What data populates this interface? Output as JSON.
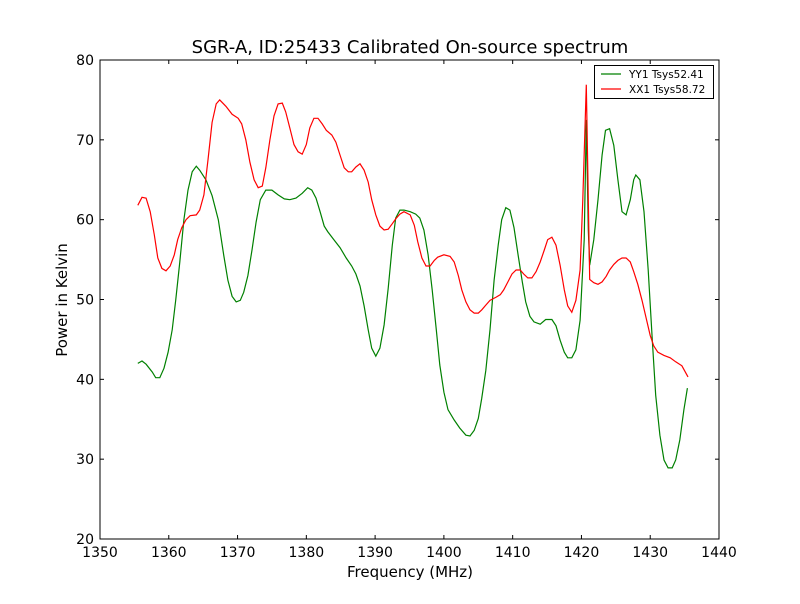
{
  "chart_data": {
    "type": "line",
    "title": "SGR-A, ID:25433 Calibrated On-source spectrum",
    "xlabel": "Frequency (MHz)",
    "ylabel": "Power in Kelvin",
    "xlim": [
      1350,
      1440
    ],
    "ylim": [
      20,
      80
    ],
    "xticks": [
      1350,
      1360,
      1370,
      1380,
      1390,
      1400,
      1410,
      1420,
      1430,
      1440
    ],
    "yticks": [
      20,
      30,
      40,
      50,
      60,
      70,
      80
    ],
    "grid": false,
    "legend_position": "top-right",
    "series": [
      {
        "name": "YY1 Tsys52.41",
        "color": "#008000",
        "points": [
          [
            1355.5,
            42.0
          ],
          [
            1356.1,
            42.3
          ],
          [
            1356.7,
            41.9
          ],
          [
            1357.6,
            40.9
          ],
          [
            1358.1,
            40.2
          ],
          [
            1358.7,
            40.2
          ],
          [
            1359.3,
            41.4
          ],
          [
            1359.9,
            43.4
          ],
          [
            1360.5,
            46.2
          ],
          [
            1361.0,
            49.9
          ],
          [
            1361.6,
            54.7
          ],
          [
            1362.2,
            60.0
          ],
          [
            1362.8,
            63.7
          ],
          [
            1363.4,
            66.0
          ],
          [
            1364.0,
            66.7
          ],
          [
            1364.5,
            66.2
          ],
          [
            1365.4,
            65.0
          ],
          [
            1366.3,
            63.0
          ],
          [
            1367.2,
            60.0
          ],
          [
            1368.0,
            55.5
          ],
          [
            1368.6,
            52.4
          ],
          [
            1369.2,
            50.4
          ],
          [
            1369.8,
            49.7
          ],
          [
            1370.4,
            49.9
          ],
          [
            1370.9,
            50.9
          ],
          [
            1371.5,
            53.0
          ],
          [
            1372.1,
            56.2
          ],
          [
            1372.7,
            59.7
          ],
          [
            1373.3,
            62.5
          ],
          [
            1374.1,
            63.7
          ],
          [
            1375.0,
            63.7
          ],
          [
            1375.9,
            63.1
          ],
          [
            1376.8,
            62.6
          ],
          [
            1377.6,
            62.5
          ],
          [
            1378.5,
            62.7
          ],
          [
            1379.4,
            63.3
          ],
          [
            1380.2,
            64.0
          ],
          [
            1380.8,
            63.7
          ],
          [
            1381.4,
            62.7
          ],
          [
            1382.0,
            61.0
          ],
          [
            1382.6,
            59.2
          ],
          [
            1383.1,
            58.5
          ],
          [
            1384.0,
            57.5
          ],
          [
            1384.9,
            56.5
          ],
          [
            1385.8,
            55.2
          ],
          [
            1386.6,
            54.2
          ],
          [
            1387.2,
            53.2
          ],
          [
            1387.8,
            51.7
          ],
          [
            1388.4,
            49.2
          ],
          [
            1389.0,
            46.2
          ],
          [
            1389.5,
            43.9
          ],
          [
            1390.1,
            42.9
          ],
          [
            1390.7,
            43.9
          ],
          [
            1391.3,
            46.8
          ],
          [
            1391.9,
            51.4
          ],
          [
            1392.5,
            56.8
          ],
          [
            1393.0,
            60.2
          ],
          [
            1393.6,
            61.2
          ],
          [
            1394.2,
            61.2
          ],
          [
            1395.1,
            61.0
          ],
          [
            1395.9,
            60.7
          ],
          [
            1396.5,
            60.2
          ],
          [
            1397.1,
            58.7
          ],
          [
            1397.7,
            55.6
          ],
          [
            1398.3,
            51.2
          ],
          [
            1398.9,
            46.2
          ],
          [
            1399.4,
            41.8
          ],
          [
            1400.0,
            38.4
          ],
          [
            1400.6,
            36.2
          ],
          [
            1401.5,
            34.9
          ],
          [
            1402.3,
            33.9
          ],
          [
            1403.2,
            33.0
          ],
          [
            1403.8,
            32.9
          ],
          [
            1404.4,
            33.6
          ],
          [
            1405.0,
            35.1
          ],
          [
            1405.5,
            37.6
          ],
          [
            1406.1,
            41.1
          ],
          [
            1406.7,
            46.2
          ],
          [
            1407.3,
            52.4
          ],
          [
            1407.9,
            56.8
          ],
          [
            1408.4,
            60.0
          ],
          [
            1409.0,
            61.5
          ],
          [
            1409.6,
            61.2
          ],
          [
            1410.2,
            59.0
          ],
          [
            1410.8,
            55.5
          ],
          [
            1411.4,
            52.2
          ],
          [
            1411.9,
            49.7
          ],
          [
            1412.5,
            47.9
          ],
          [
            1413.1,
            47.2
          ],
          [
            1414.0,
            46.9
          ],
          [
            1414.8,
            47.5
          ],
          [
            1415.7,
            47.5
          ],
          [
            1416.3,
            46.7
          ],
          [
            1416.9,
            44.9
          ],
          [
            1417.5,
            43.4
          ],
          [
            1418.0,
            42.7
          ],
          [
            1418.6,
            42.7
          ],
          [
            1419.2,
            43.7
          ],
          [
            1419.8,
            47.4
          ],
          [
            1420.4,
            57.5
          ],
          [
            1420.7,
            72.5
          ],
          [
            1421.0,
            58.7
          ],
          [
            1421.2,
            54.3
          ],
          [
            1421.8,
            57.5
          ],
          [
            1422.4,
            62.5
          ],
          [
            1423.0,
            68.1
          ],
          [
            1423.5,
            71.2
          ],
          [
            1424.1,
            71.4
          ],
          [
            1424.7,
            69.3
          ],
          [
            1425.3,
            65.0
          ],
          [
            1425.9,
            61.0
          ],
          [
            1426.5,
            60.6
          ],
          [
            1427.1,
            62.5
          ],
          [
            1427.6,
            65.0
          ],
          [
            1427.9,
            65.6
          ],
          [
            1428.5,
            65.0
          ],
          [
            1429.1,
            61.0
          ],
          [
            1429.7,
            53.7
          ],
          [
            1430.3,
            44.9
          ],
          [
            1430.8,
            38.0
          ],
          [
            1431.4,
            33.0
          ],
          [
            1432.0,
            29.9
          ],
          [
            1432.6,
            28.9
          ],
          [
            1433.2,
            28.9
          ],
          [
            1433.7,
            29.9
          ],
          [
            1434.3,
            32.4
          ],
          [
            1434.9,
            36.2
          ],
          [
            1435.4,
            38.9
          ]
        ]
      },
      {
        "name": "XX1 Tsys58.72",
        "color": "#ff0000",
        "points": [
          [
            1355.5,
            61.8
          ],
          [
            1356.1,
            62.8
          ],
          [
            1356.7,
            62.7
          ],
          [
            1357.3,
            61.0
          ],
          [
            1357.9,
            58.1
          ],
          [
            1358.4,
            55.2
          ],
          [
            1359.0,
            53.9
          ],
          [
            1359.6,
            53.6
          ],
          [
            1360.2,
            54.2
          ],
          [
            1360.8,
            55.6
          ],
          [
            1361.3,
            57.5
          ],
          [
            1361.9,
            59.0
          ],
          [
            1362.5,
            60.0
          ],
          [
            1363.1,
            60.5
          ],
          [
            1364.0,
            60.6
          ],
          [
            1364.5,
            61.2
          ],
          [
            1365.1,
            63.1
          ],
          [
            1365.7,
            67.5
          ],
          [
            1366.3,
            72.2
          ],
          [
            1366.9,
            74.5
          ],
          [
            1367.4,
            75.0
          ],
          [
            1368.3,
            74.2
          ],
          [
            1369.2,
            73.2
          ],
          [
            1370.1,
            72.7
          ],
          [
            1370.6,
            72.0
          ],
          [
            1371.2,
            70.0
          ],
          [
            1371.8,
            67.2
          ],
          [
            1372.4,
            65.0
          ],
          [
            1373.0,
            64.0
          ],
          [
            1373.6,
            64.2
          ],
          [
            1374.1,
            66.5
          ],
          [
            1374.7,
            70.0
          ],
          [
            1375.3,
            73.0
          ],
          [
            1375.9,
            74.5
          ],
          [
            1376.5,
            74.6
          ],
          [
            1377.0,
            73.5
          ],
          [
            1377.6,
            71.5
          ],
          [
            1378.2,
            69.4
          ],
          [
            1378.8,
            68.5
          ],
          [
            1379.4,
            68.2
          ],
          [
            1380.0,
            69.4
          ],
          [
            1380.5,
            71.5
          ],
          [
            1381.1,
            72.7
          ],
          [
            1381.7,
            72.7
          ],
          [
            1382.3,
            72.0
          ],
          [
            1382.9,
            71.2
          ],
          [
            1383.7,
            70.6
          ],
          [
            1384.3,
            69.7
          ],
          [
            1384.9,
            68.1
          ],
          [
            1385.5,
            66.5
          ],
          [
            1386.1,
            66.0
          ],
          [
            1386.6,
            66.0
          ],
          [
            1387.2,
            66.6
          ],
          [
            1387.8,
            67.0
          ],
          [
            1388.4,
            66.2
          ],
          [
            1389.0,
            64.7
          ],
          [
            1389.5,
            62.5
          ],
          [
            1390.1,
            60.6
          ],
          [
            1390.7,
            59.2
          ],
          [
            1391.3,
            58.7
          ],
          [
            1391.9,
            58.8
          ],
          [
            1392.5,
            59.5
          ],
          [
            1393.0,
            60.1
          ],
          [
            1393.6,
            60.7
          ],
          [
            1394.2,
            61.0
          ],
          [
            1395.1,
            60.6
          ],
          [
            1395.7,
            59.3
          ],
          [
            1396.2,
            57.2
          ],
          [
            1396.8,
            55.2
          ],
          [
            1397.4,
            54.2
          ],
          [
            1398.0,
            54.2
          ],
          [
            1398.6,
            54.9
          ],
          [
            1399.1,
            55.3
          ],
          [
            1400.0,
            55.6
          ],
          [
            1400.9,
            55.4
          ],
          [
            1401.5,
            54.7
          ],
          [
            1402.1,
            53.0
          ],
          [
            1402.6,
            51.2
          ],
          [
            1403.2,
            49.7
          ],
          [
            1403.8,
            48.7
          ],
          [
            1404.4,
            48.3
          ],
          [
            1405.0,
            48.3
          ],
          [
            1405.5,
            48.7
          ],
          [
            1406.1,
            49.3
          ],
          [
            1406.7,
            49.9
          ],
          [
            1407.6,
            50.3
          ],
          [
            1408.2,
            50.6
          ],
          [
            1408.7,
            51.2
          ],
          [
            1409.3,
            52.2
          ],
          [
            1409.9,
            53.2
          ],
          [
            1410.5,
            53.7
          ],
          [
            1411.1,
            53.7
          ],
          [
            1411.6,
            53.2
          ],
          [
            1412.2,
            52.7
          ],
          [
            1412.8,
            52.7
          ],
          [
            1413.4,
            53.5
          ],
          [
            1414.0,
            54.7
          ],
          [
            1414.6,
            56.2
          ],
          [
            1415.1,
            57.5
          ],
          [
            1415.7,
            57.8
          ],
          [
            1416.3,
            56.8
          ],
          [
            1416.9,
            54.3
          ],
          [
            1417.5,
            51.2
          ],
          [
            1418.0,
            49.2
          ],
          [
            1418.6,
            48.4
          ],
          [
            1419.2,
            49.9
          ],
          [
            1419.8,
            53.7
          ],
          [
            1420.2,
            62.5
          ],
          [
            1420.7,
            76.9
          ],
          [
            1421.0,
            62.5
          ],
          [
            1421.2,
            52.5
          ],
          [
            1421.8,
            52.1
          ],
          [
            1422.4,
            51.9
          ],
          [
            1423.0,
            52.2
          ],
          [
            1423.6,
            52.9
          ],
          [
            1424.1,
            53.7
          ],
          [
            1424.7,
            54.4
          ],
          [
            1425.3,
            54.9
          ],
          [
            1425.9,
            55.2
          ],
          [
            1426.5,
            55.2
          ],
          [
            1427.1,
            54.7
          ],
          [
            1427.6,
            53.5
          ],
          [
            1428.2,
            51.9
          ],
          [
            1428.8,
            49.9
          ],
          [
            1429.4,
            47.7
          ],
          [
            1430.0,
            45.5
          ],
          [
            1430.5,
            44.2
          ],
          [
            1431.1,
            43.4
          ],
          [
            1432.0,
            43.0
          ],
          [
            1432.9,
            42.7
          ],
          [
            1433.7,
            42.2
          ],
          [
            1434.6,
            41.7
          ],
          [
            1435.5,
            40.3
          ]
        ]
      }
    ]
  }
}
